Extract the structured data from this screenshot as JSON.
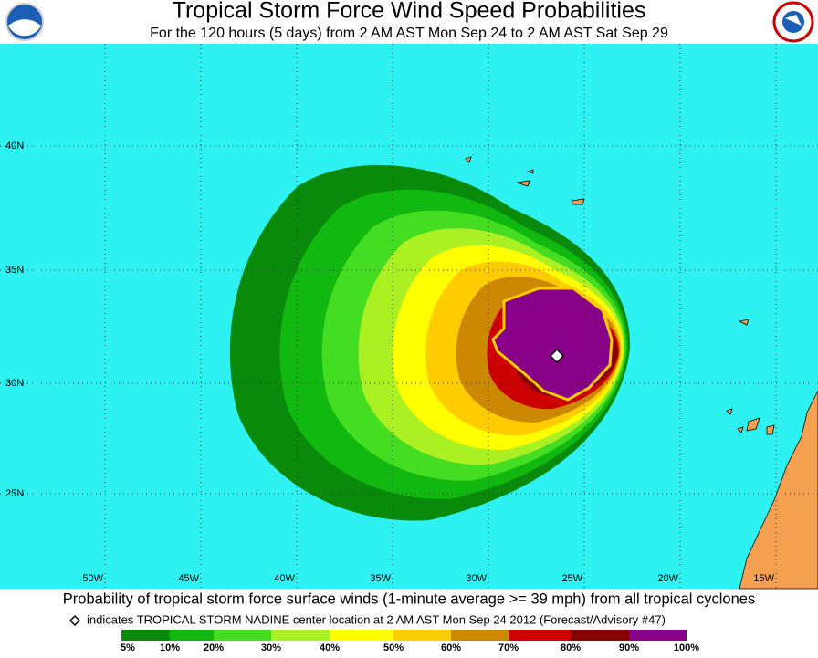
{
  "header": {
    "title": "Tropical Storm Force Wind Speed Probabilities",
    "subtitle": "For the 120 hours (5 days) from 2 AM AST Mon Sep 24 to 2 AM AST Sat Sep 29"
  },
  "map": {
    "latitude_labels": [
      "40N",
      "35N",
      "30N",
      "25N"
    ],
    "longitude_labels": [
      "50W",
      "45W",
      "40W",
      "35W",
      "30W",
      "25W",
      "20W",
      "15W"
    ]
  },
  "footer": {
    "caption": "Probability of tropical storm force surface winds (1-minute average >= 39 mph) from all tropical cyclones",
    "note": "indicates TROPICAL STORM NADINE center location at 2 AM AST Mon Sep 24 2012 (Forecast/Advisory #47)"
  },
  "legend": {
    "labels": [
      "5%",
      "10%",
      "20%",
      "30%",
      "40%",
      "50%",
      "60%",
      "70%",
      "80%",
      "90%",
      "100%"
    ],
    "colors": [
      "#0a8a0a",
      "#10b810",
      "#44dd22",
      "#aaf022",
      "#ffff00",
      "#ffcc00",
      "#cc8800",
      "#cc0000",
      "#880000",
      "#880088"
    ]
  }
}
